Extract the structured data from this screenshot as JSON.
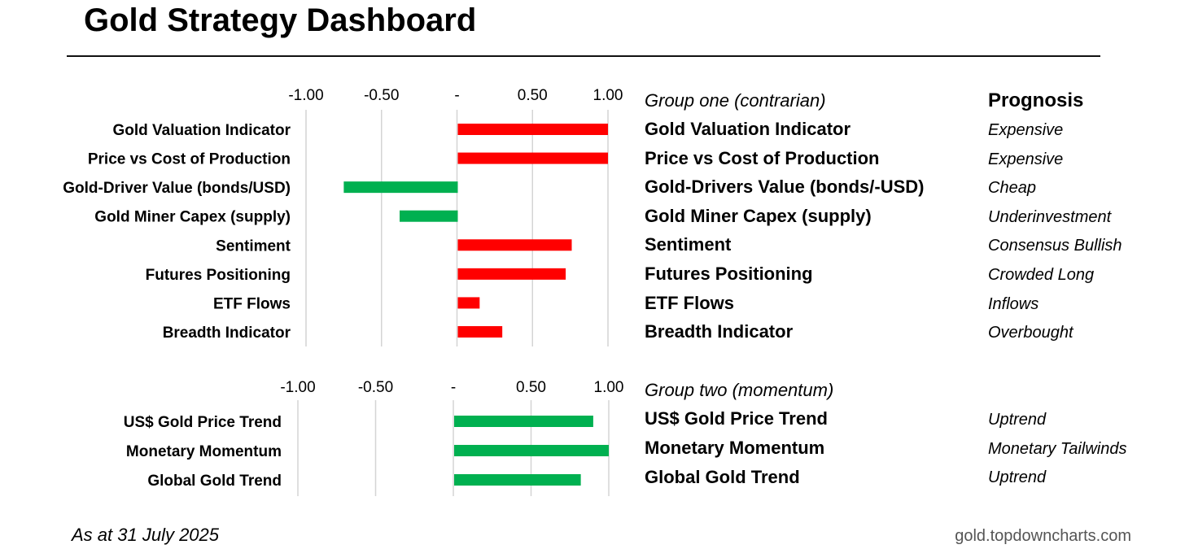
{
  "header": {
    "title": "Gold Strategy Dashboard"
  },
  "colors": {
    "positive": "#ff0000",
    "negative": "#00b050",
    "grid": "#d4d4d4"
  },
  "prognosis_header": "Prognosis",
  "groups": [
    {
      "heading": "Group one (contrarian)",
      "rows": [
        {
          "indicator": "Gold Valuation Indicator",
          "prognosis": "Expensive"
        },
        {
          "indicator": "Price vs Cost of Production",
          "prognosis": "Expensive"
        },
        {
          "indicator": "Gold-Drivers Value (bonds/-USD)",
          "prognosis": "Cheap"
        },
        {
          "indicator": "Gold Miner Capex (supply)",
          "prognosis": "Underinvestment"
        },
        {
          "indicator": "Sentiment",
          "prognosis": "Consensus Bullish"
        },
        {
          "indicator": "Futures Positioning",
          "prognosis": "Crowded Long"
        },
        {
          "indicator": "ETF Flows",
          "prognosis": "Inflows"
        },
        {
          "indicator": "Breadth Indicator",
          "prognosis": "Overbought"
        }
      ]
    },
    {
      "heading": "Group two (momentum)",
      "rows": [
        {
          "indicator": "US$ Gold Price Trend",
          "prognosis": "Uptrend"
        },
        {
          "indicator": "Monetary Momentum",
          "prognosis": "Monetary Tailwinds"
        },
        {
          "indicator": "Global Gold Trend",
          "prognosis": "Uptrend"
        }
      ]
    }
  ],
  "chart_data": [
    {
      "type": "bar",
      "orientation": "horizontal",
      "title": "Group one (contrarian)",
      "categories": [
        "Gold Valuation Indicator",
        "Price vs Cost of Production",
        "Gold-Driver Value (bonds/USD)",
        "Gold Miner Capex (supply)",
        "Sentiment",
        "Futures Positioning",
        "ETF Flows",
        "Breadth Indicator"
      ],
      "values": [
        1.0,
        1.0,
        -0.75,
        -0.38,
        0.76,
        0.72,
        0.15,
        0.3
      ],
      "xlim": [
        -1.0,
        1.0
      ],
      "ticks": [
        -1.0,
        -0.5,
        0,
        0.5,
        1.0
      ],
      "tick_labels": [
        "-1.00",
        "-0.50",
        "-",
        "0.50",
        "1.00"
      ],
      "grid": true
    },
    {
      "type": "bar",
      "orientation": "horizontal",
      "title": "Group two (momentum)",
      "categories": [
        "US$ Gold Price Trend",
        "Monetary Momentum",
        "Global Gold Trend"
      ],
      "values": [
        0.9,
        1.0,
        0.82
      ],
      "xlim": [
        -1.0,
        1.0
      ],
      "ticks": [
        -1.0,
        -0.5,
        0,
        0.5,
        1.0
      ],
      "tick_labels": [
        "-1.00",
        "-0.50",
        "-",
        "0.50",
        "1.00"
      ],
      "grid": true
    }
  ],
  "footer": {
    "as_at": "As at 31 July 2025",
    "source": "gold.topdowncharts.com"
  }
}
